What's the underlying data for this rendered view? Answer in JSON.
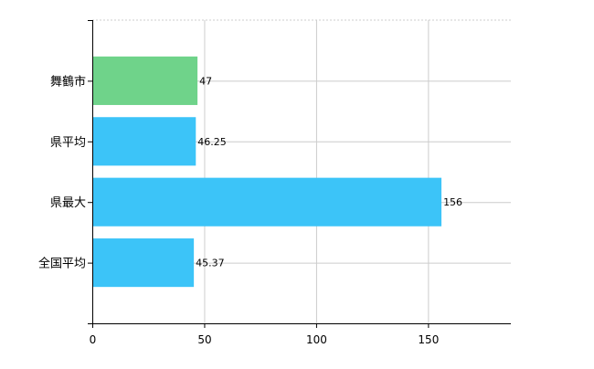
{
  "chart_data": {
    "type": "bar",
    "orientation": "horizontal",
    "categories": [
      "舞鶴市",
      "県平均",
      "県最大",
      "全国平均"
    ],
    "values": [
      47,
      46.25,
      156,
      45.37
    ],
    "value_labels": [
      "47",
      "46.25",
      "156",
      "45.37"
    ],
    "xlim": [
      0,
      187
    ],
    "xticks": [
      0,
      50,
      100,
      150
    ],
    "grid": true,
    "bar_colors": [
      "#6fd38a",
      "#3cc4f8",
      "#3cc4f8",
      "#3cc4f8"
    ],
    "grid_color": "#cccccc",
    "axis_color": "#000000"
  }
}
